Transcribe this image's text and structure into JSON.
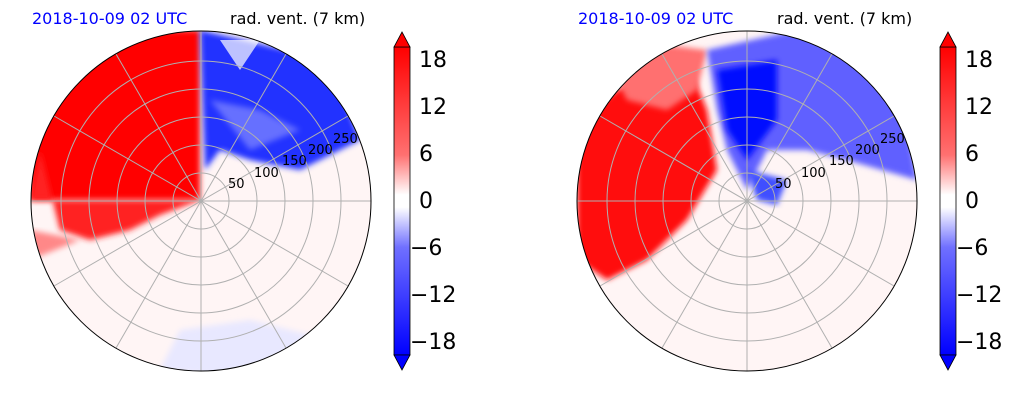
{
  "chart_data": [
    {
      "type": "heatmap",
      "projection": "polar",
      "title_left": "2018-10-09 02 UTC",
      "title_right": "rad. vent. (7 km)",
      "radial_ticks": [
        "50",
        "100",
        "150",
        "200",
        "250"
      ],
      "colorbar": {
        "ticks": [
          "18",
          "12",
          "6",
          "0",
          "−6",
          "−12",
          "−18"
        ],
        "range": [
          -21,
          21
        ],
        "colors": {
          "positive": "#ff0000",
          "negative": "#0000ff",
          "zero": "#ffffff"
        }
      },
      "title_left_color": "#0000ff"
    },
    {
      "type": "heatmap",
      "projection": "polar",
      "title_left": "2018-10-09 02 UTC",
      "title_right": "rad. vent. (7 km)",
      "radial_ticks": [
        "50",
        "100",
        "150",
        "200",
        "250"
      ],
      "colorbar": {
        "ticks": [
          "18",
          "12",
          "6",
          "0",
          "−6",
          "−12",
          "−18"
        ],
        "range": [
          -21,
          21
        ],
        "colors": {
          "positive": "#ff0000",
          "negative": "#0000ff",
          "zero": "#ffffff"
        }
      },
      "title_left_color": "#0000ff"
    }
  ]
}
